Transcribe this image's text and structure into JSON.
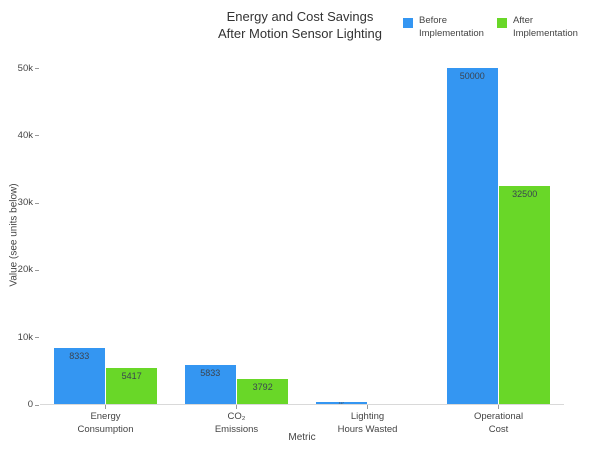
{
  "title": {
    "text": "Energy and Cost Savings\nAfter Motion Sensor Lighting"
  },
  "legend": {
    "items": [
      {
        "label": "Before\nImplementation",
        "color": "#3496F2"
      },
      {
        "label": "After\nImplementation",
        "color": "#69D728"
      }
    ]
  },
  "axes": {
    "x_title": "Metric",
    "y_title": "Value (see units below)",
    "y_ticks": [
      {
        "label": "0",
        "value": 0
      },
      {
        "label": "10k",
        "value": 10000
      },
      {
        "label": "20k",
        "value": 20000
      },
      {
        "label": "30k",
        "value": 30000
      },
      {
        "label": "40k",
        "value": 40000
      },
      {
        "label": "50k",
        "value": 50000
      }
    ]
  },
  "chart_data": {
    "type": "bar",
    "title": "Energy and Cost Savings After Motion Sensor Lighting",
    "categories": [
      "Energy Consumption",
      "CO₂ Emissions",
      "Lighting Hours Wasted",
      "Operational Cost"
    ],
    "categories_display": [
      "Energy\nConsumption",
      "CO₂\nEmissions",
      "Lighting\nHours Wasted",
      "Operational\nCost"
    ],
    "series": [
      {
        "name": "Before Implementation",
        "color": "#3496F2",
        "values": [
          8333,
          5833,
          417,
          50000
        ]
      },
      {
        "name": "After Implementation",
        "color": "#69D728",
        "values": [
          5417,
          3792,
          0,
          32500
        ]
      }
    ],
    "bar_value_labels_visible": [
      "8333",
      "5417",
      "5833",
      "3792",
      "50000",
      "32500"
    ],
    "xlabel": "Metric",
    "ylabel": "Value (see units below)",
    "ylim": [
      0,
      52500
    ],
    "grid": false,
    "legend_position": "top-right",
    "bar_label_position": "inside-top"
  }
}
